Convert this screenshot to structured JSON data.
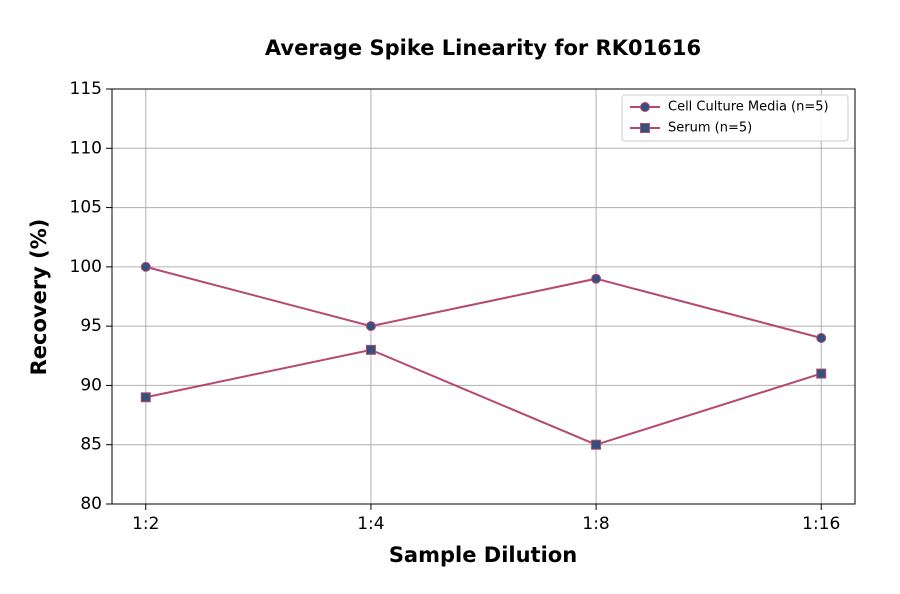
{
  "chart_data": {
    "type": "line",
    "title": "Average Spike Linearity for RK01616",
    "x_label": "Sample Dilution",
    "y_label": "Recovery (%)",
    "categories": [
      "1:2",
      "1:4",
      "1:8",
      "1:16"
    ],
    "series": [
      {
        "name": "Cell Culture Media (n=5)",
        "color": "#b5496f",
        "marker_color": "#34507e",
        "marker": "circle",
        "values": [
          100,
          95,
          99,
          94
        ]
      },
      {
        "name": "Serum (n=5)",
        "color": "#b5496f",
        "marker_color": "#34507e",
        "marker": "square",
        "values": [
          89,
          93,
          85,
          91
        ]
      }
    ],
    "ylim": [
      80,
      115
    ],
    "yticks": [
      80,
      85,
      90,
      95,
      100,
      105,
      110,
      115
    ],
    "grid": true,
    "legend": "upper right"
  }
}
